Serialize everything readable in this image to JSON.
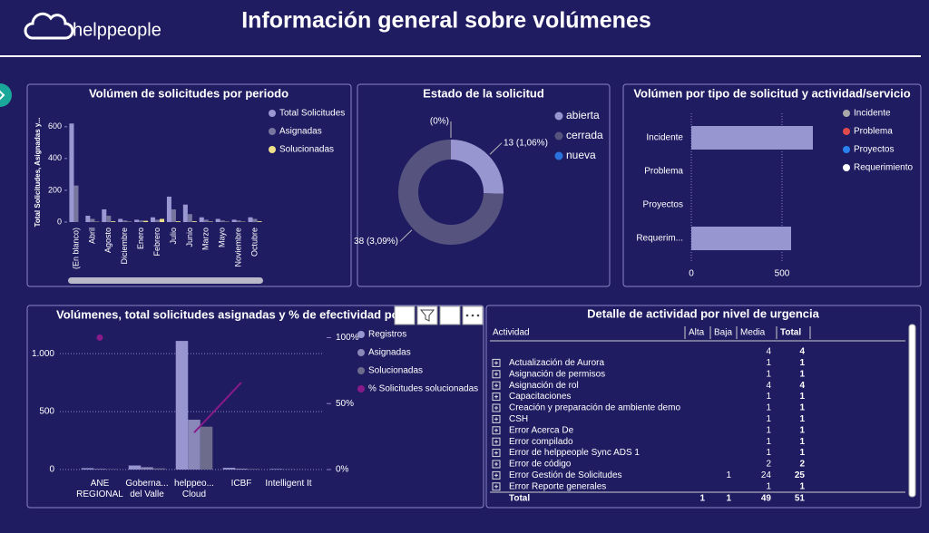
{
  "header": {
    "logo": "helppeople",
    "title": "Información general sobre volúmenes"
  },
  "period_chart": {
    "type": "bar",
    "title": "Volúmen de solicitudes por periodo",
    "y_label": "Total Solicitudes, Asignadas y...",
    "categories": [
      "(En blanco)",
      "Abril",
      "Agosto",
      "Diciembre",
      "Enero",
      "Febrero",
      "Julio",
      "Junio",
      "Marzo",
      "Mayo",
      "Noviembre",
      "Octubre"
    ],
    "series": [
      {
        "name": "Total Solicitudes",
        "color": "#9a98d2",
        "values": [
          620,
          40,
          80,
          20,
          15,
          30,
          160,
          110,
          30,
          20,
          15,
          30
        ]
      },
      {
        "name": "Asignadas",
        "color": "#77769e",
        "values": [
          230,
          20,
          40,
          10,
          10,
          15,
          80,
          50,
          15,
          10,
          10,
          20
        ]
      },
      {
        "name": "Solucionadas",
        "color": "#efe08c",
        "values": [
          0,
          2,
          5,
          2,
          8,
          20,
          5,
          5,
          3,
          2,
          2,
          5
        ]
      }
    ],
    "ylim": [
      0,
      650
    ],
    "yticks": [
      0,
      200,
      400,
      600
    ]
  },
  "status_chart": {
    "type": "pie",
    "title": "Estado de la solicitud",
    "categories": [
      "abierta",
      "cerrada",
      "nueva"
    ],
    "values": [
      13,
      38,
      0
    ],
    "value_labels": [
      "13 (1,06%)",
      "38 (3,09%)",
      "(0%)"
    ],
    "colors": [
      "#9896d0",
      "#56547f",
      "#2a72e0"
    ]
  },
  "type_chart": {
    "type": "hbar",
    "title": "Volúmen por tipo de solicitud y actividad/servicio",
    "categories": [
      "Incidente",
      "Problema",
      "Proyectos",
      "Requerim..."
    ],
    "values": [
      670,
      0,
      0,
      550
    ],
    "color": "#9896d0",
    "legend": [
      {
        "name": "Incidente",
        "color": "#a8a8a8"
      },
      {
        "name": "Problema",
        "color": "#e04a4a"
      },
      {
        "name": "Proyectos",
        "color": "#2a82f0"
      },
      {
        "name": "Requerimiento",
        "color": "#ffffff"
      }
    ],
    "xlim": [
      0,
      700
    ],
    "xticks": [
      0,
      500
    ]
  },
  "org_chart": {
    "type": "combo",
    "title": "Volúmenes, total solicitudes asignadas y % de efectividad po",
    "categories": [
      "ANE REGIONAL",
      "Goberna... del Valle",
      "helppeo... Cloud",
      "ICBF",
      "Intelligent It"
    ],
    "series": [
      {
        "name": "Registros",
        "color": "#9896d0",
        "values": [
          12,
          35,
          1110,
          15,
          5
        ]
      },
      {
        "name": "Asignadas",
        "color": "#8a88b8",
        "values": [
          6,
          20,
          430,
          8,
          2
        ]
      },
      {
        "name": "Solucionadas",
        "color": "#6e6c8c",
        "values": [
          4,
          10,
          370,
          5,
          1
        ]
      },
      {
        "name": "% Solicitudes solucionadas",
        "color": "#8a1a8a",
        "axis": "y2",
        "type": "line",
        "values": [
          100,
          null,
          28,
          66,
          null
        ]
      }
    ],
    "ylim": [
      0,
      1150
    ],
    "yticks": [
      0,
      500,
      {
        "value": 1000,
        "label": "1.000"
      }
    ],
    "y2lim": [
      0,
      101
    ],
    "y2ticks": [
      {
        "value": 0,
        "label": "0%"
      },
      {
        "value": 50,
        "label": "50%"
      },
      {
        "value": 100,
        "label": "100%"
      }
    ]
  },
  "table": {
    "title": "Detalle de actividad por nivel de urgencia",
    "columns": [
      "Actividad",
      "Alta",
      "Baja",
      "Media",
      "Total"
    ],
    "rows": [
      [
        null,
        null,
        null,
        4,
        4
      ],
      [
        "Actualización de Aurora",
        null,
        null,
        1,
        1
      ],
      [
        "Asignación de permisos",
        null,
        null,
        1,
        1
      ],
      [
        "Asignación de rol",
        null,
        null,
        4,
        4
      ],
      [
        "Capacitaciones",
        null,
        null,
        1,
        1
      ],
      [
        "Creación y preparación de ambiente demo",
        null,
        null,
        1,
        1
      ],
      [
        "CSH",
        null,
        null,
        1,
        1
      ],
      [
        "Error Acerca De",
        null,
        null,
        1,
        1
      ],
      [
        "Error compilado",
        null,
        null,
        1,
        1
      ],
      [
        "Error de helppeople Sync ADS 1",
        null,
        null,
        1,
        1
      ],
      [
        "Error de código",
        null,
        null,
        2,
        2
      ],
      [
        "Error Gestión de Solicitudes",
        null,
        1,
        24,
        25
      ],
      [
        "Error Reporte generales",
        null,
        null,
        1,
        1
      ]
    ],
    "total": [
      "Total",
      1,
      1,
      49,
      51
    ]
  }
}
